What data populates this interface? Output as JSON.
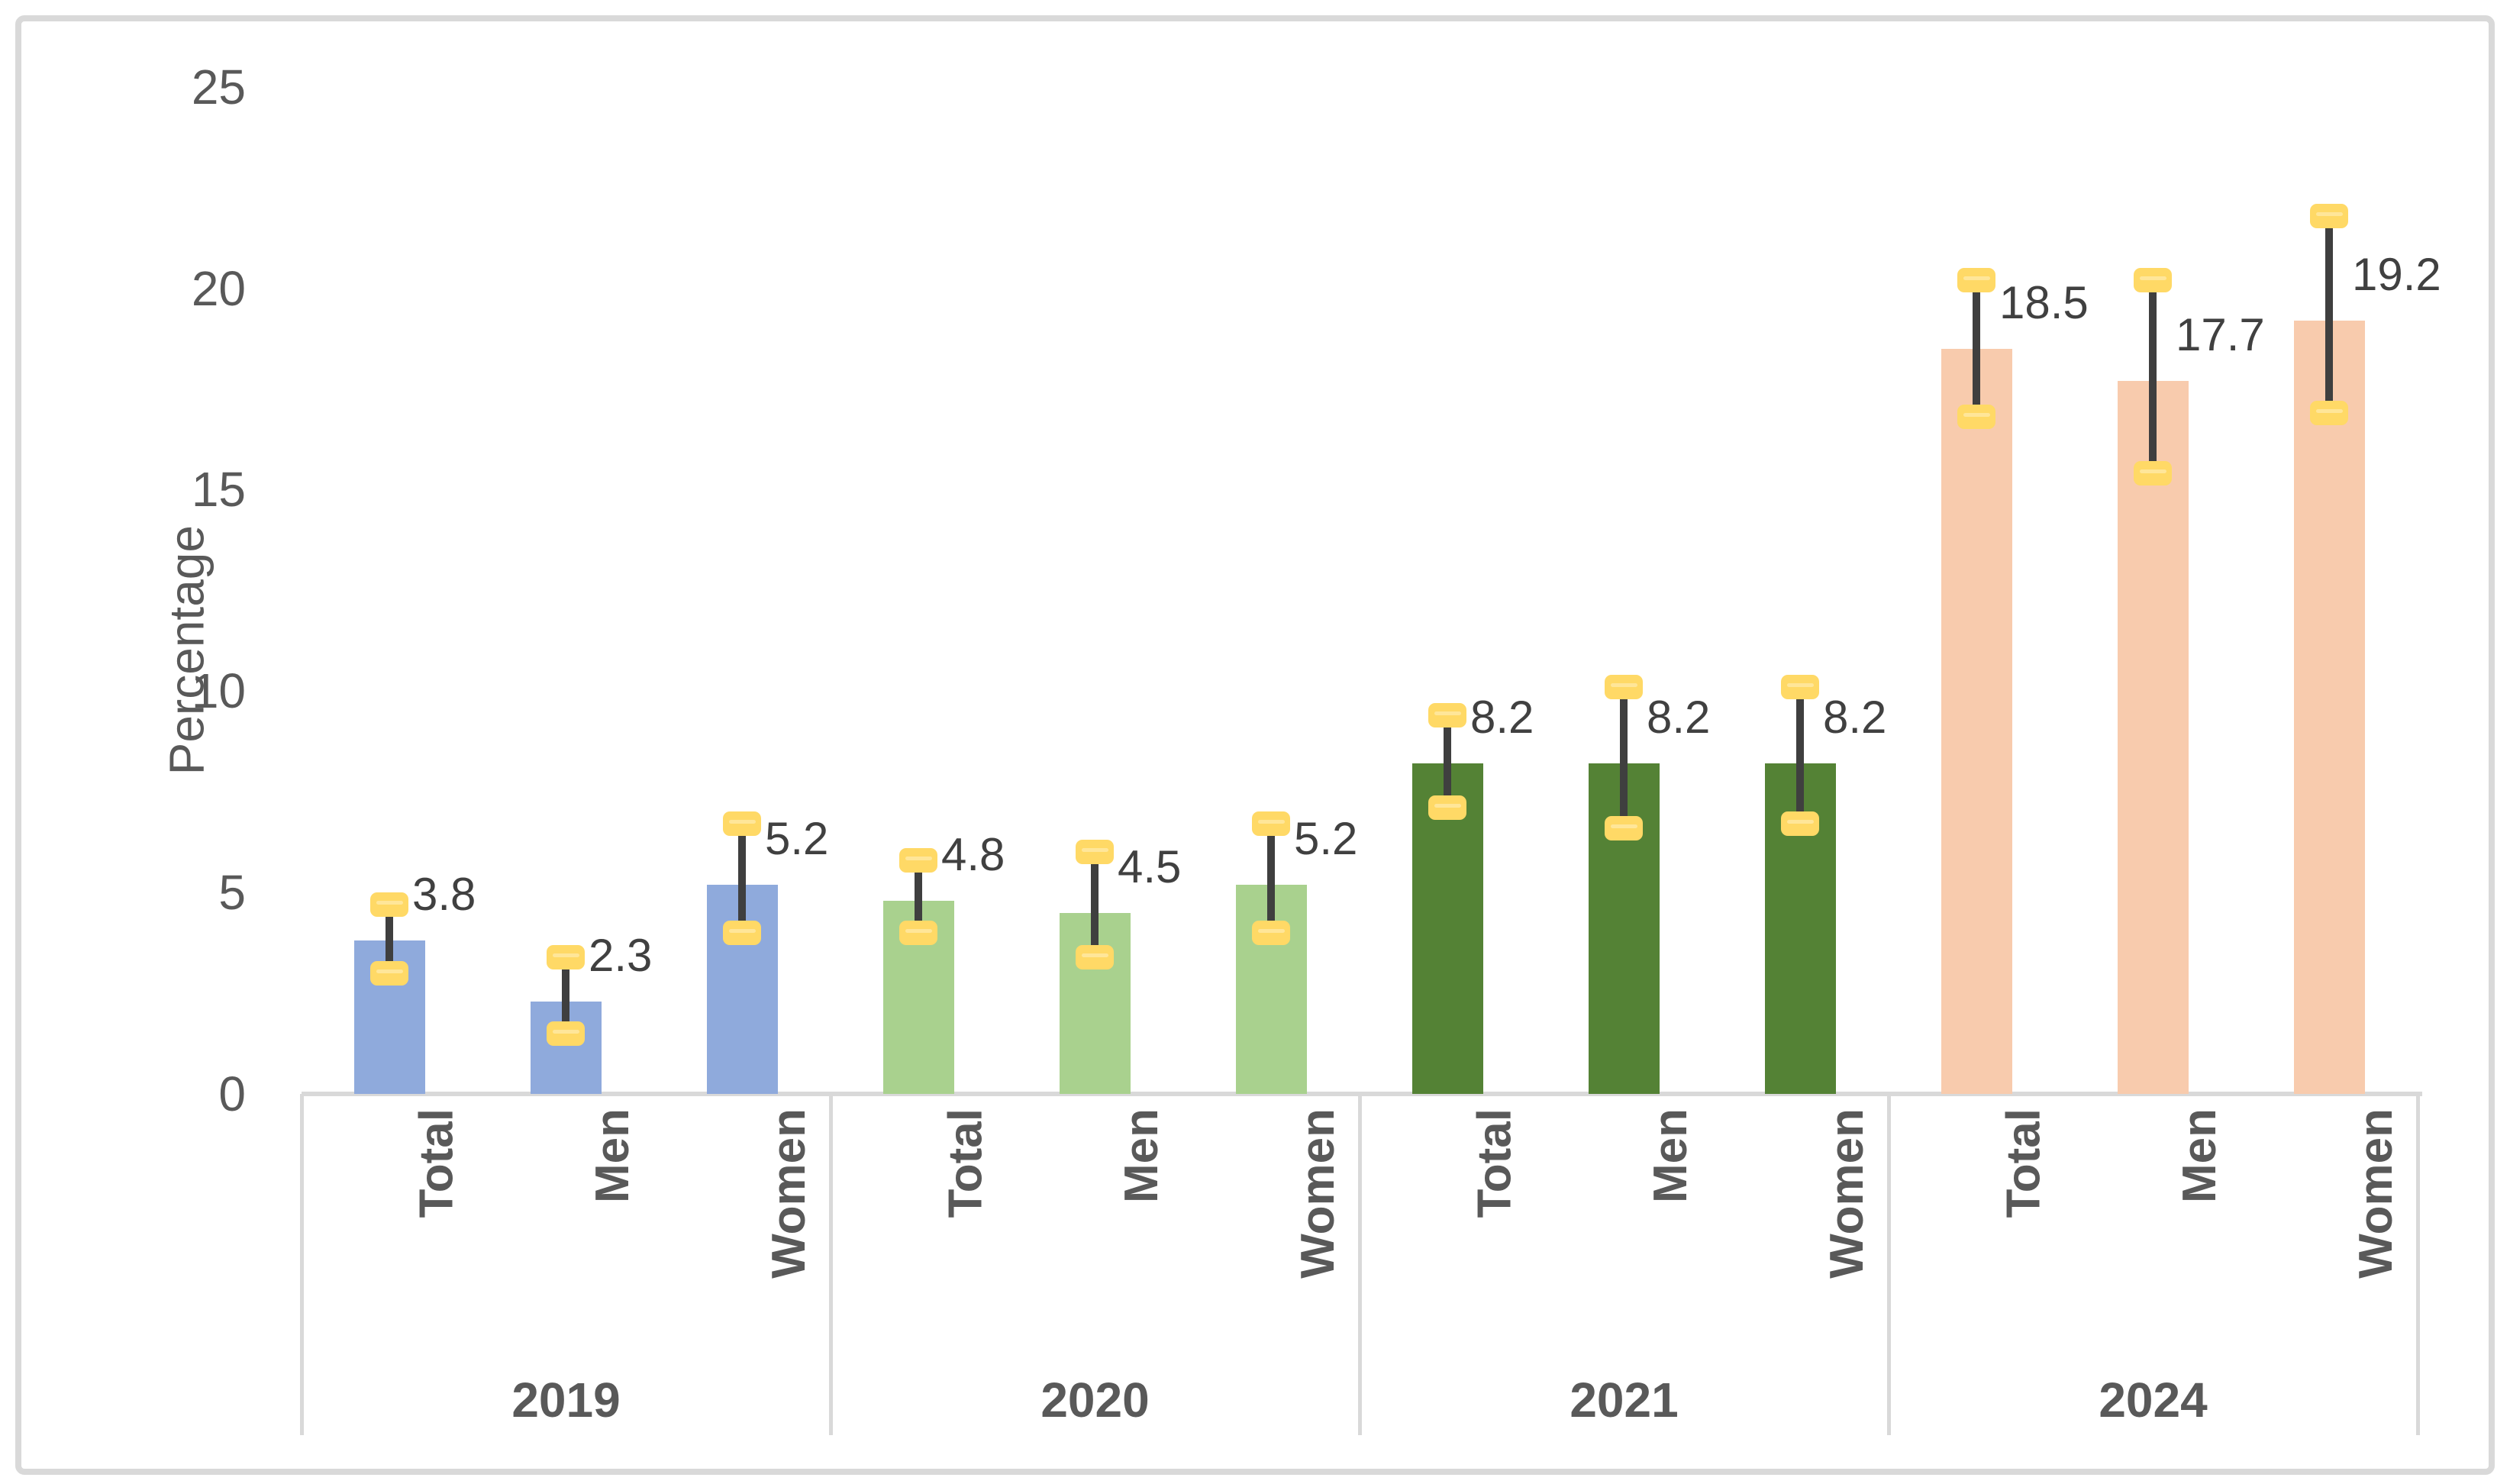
{
  "chart_data": {
    "type": "bar",
    "title": "",
    "ylabel": "Percentage",
    "ylim": [
      0,
      25
    ],
    "yticks": [
      0,
      5,
      10,
      15,
      20,
      25
    ],
    "grid": false,
    "legend_position": "none",
    "categories": [
      "Total",
      "Men",
      "Women"
    ],
    "groups": [
      {
        "year": "2019",
        "color": "#8FAADC",
        "bars": [
          {
            "category": "Total",
            "value": 3.8,
            "label": "3.8",
            "err_low": 3.0,
            "err_high": 4.7
          },
          {
            "category": "Men",
            "value": 2.3,
            "label": "2.3",
            "err_low": 1.5,
            "err_high": 3.4
          },
          {
            "category": "Women",
            "value": 5.2,
            "label": "5.2",
            "err_low": 4.0,
            "err_high": 6.7
          }
        ]
      },
      {
        "year": "2020",
        "color": "#A9D18E",
        "bars": [
          {
            "category": "Total",
            "value": 4.8,
            "label": "4.8",
            "err_low": 4.0,
            "err_high": 5.8
          },
          {
            "category": "Men",
            "value": 4.5,
            "label": "4.5",
            "err_low": 3.4,
            "err_high": 6.0
          },
          {
            "category": "Women",
            "value": 5.2,
            "label": "5.2",
            "err_low": 4.0,
            "err_high": 6.7
          }
        ]
      },
      {
        "year": "2021",
        "color": "#548235",
        "bars": [
          {
            "category": "Total",
            "value": 8.2,
            "label": "8.2",
            "err_low": 7.1,
            "err_high": 9.4
          },
          {
            "category": "Men",
            "value": 8.2,
            "label": "8.2",
            "err_low": 6.6,
            "err_high": 10.1
          },
          {
            "category": "Women",
            "value": 8.2,
            "label": "8.2",
            "err_low": 6.7,
            "err_high": 10.1
          }
        ]
      },
      {
        "year": "2024",
        "color": "#F8CBAD",
        "bars": [
          {
            "category": "Total",
            "value": 18.5,
            "label": "18.5",
            "err_low": 16.8,
            "err_high": 20.2
          },
          {
            "category": "Men",
            "value": 17.7,
            "label": "17.7",
            "err_low": 15.4,
            "err_high": 20.2
          },
          {
            "category": "Women",
            "value": 19.2,
            "label": "19.2",
            "err_low": 16.9,
            "err_high": 21.8
          }
        ]
      }
    ],
    "colors": {
      "error_bar": "#3F3F3F",
      "error_cap": "#FFD966",
      "error_cap_stripe": "#FFE699",
      "axis_line": "#D9D9D9",
      "tick_text": "#595959",
      "data_label_text": "#404040",
      "border": "#D9D9D9",
      "background": "#FFFFFF"
    }
  }
}
